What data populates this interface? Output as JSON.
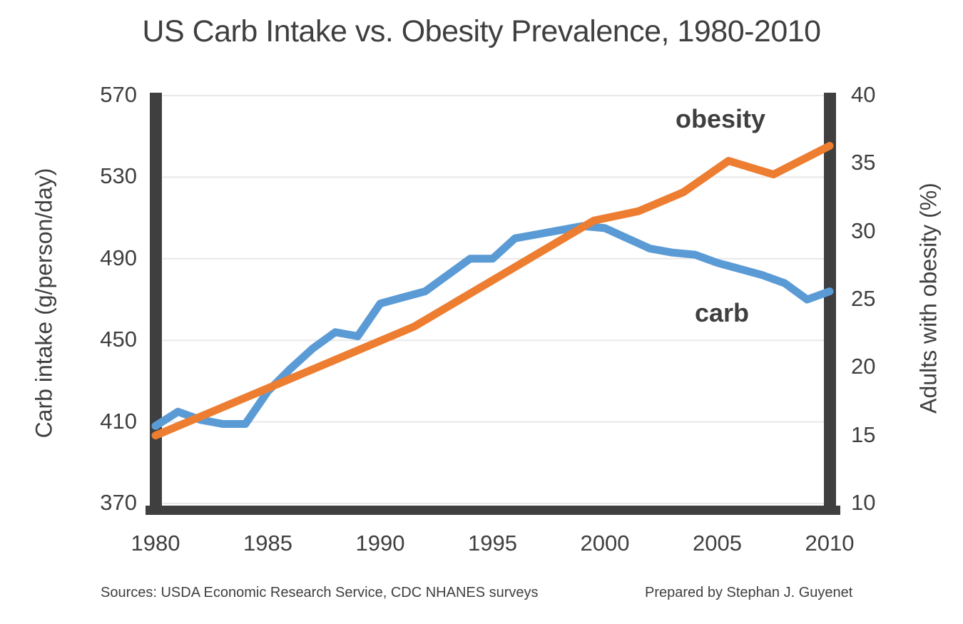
{
  "title": "US Carb Intake vs. Obesity Prevalence, 1980-2010",
  "footer": {
    "sources": "Sources: USDA Economic Research Service, CDC NHANES surveys",
    "credit": "Prepared by Stephan J. Guyenet"
  },
  "colors": {
    "carb_line": "#5B9BD5",
    "obesity_line": "#ED7D31",
    "axis_bar": "#3F3F3F",
    "gridline": "#E8E8E8",
    "text": "#3F3F3F"
  },
  "chart_data": {
    "type": "line",
    "title": "US Carb Intake vs. Obesity Prevalence, 1980-2010",
    "grid": "horizontal gridlines at left-axis ticks, light gray",
    "legend": "inline series labels inside plot area",
    "x_axis": {
      "ticks": [
        1980,
        1985,
        1990,
        1995,
        2000,
        2005,
        2010
      ],
      "range": [
        1980,
        2010
      ]
    },
    "left_axis": {
      "label": "Carb intake (g/person/day)",
      "ticks": [
        370,
        410,
        450,
        490,
        530,
        570
      ],
      "range": [
        370,
        570
      ]
    },
    "right_axis": {
      "label": "Adults with obesity (%)",
      "ticks": [
        10,
        15,
        20,
        25,
        30,
        35,
        40
      ],
      "range": [
        10,
        40
      ]
    },
    "series": [
      {
        "name": "carb",
        "inline_label": "carb",
        "axis": "left",
        "color": "#5B9BD5",
        "units": "g/person/day",
        "points": [
          [
            1980,
            408
          ],
          [
            1981,
            415
          ],
          [
            1982,
            411
          ],
          [
            1983,
            409
          ],
          [
            1984,
            409
          ],
          [
            1985,
            425
          ],
          [
            1986,
            436
          ],
          [
            1987,
            446
          ],
          [
            1988,
            454
          ],
          [
            1989,
            452
          ],
          [
            1990,
            468
          ],
          [
            1991,
            471
          ],
          [
            1992,
            474
          ],
          [
            1993,
            482
          ],
          [
            1994,
            490
          ],
          [
            1995,
            490
          ],
          [
            1996,
            500
          ],
          [
            1997,
            502
          ],
          [
            1998,
            504
          ],
          [
            1999,
            506
          ],
          [
            2000,
            505
          ],
          [
            2001,
            500
          ],
          [
            2002,
            495
          ],
          [
            2003,
            493
          ],
          [
            2004,
            492
          ],
          [
            2005,
            488
          ],
          [
            2006,
            485
          ],
          [
            2007,
            482
          ],
          [
            2008,
            478
          ],
          [
            2009,
            470
          ],
          [
            2010,
            474
          ]
        ]
      },
      {
        "name": "obesity",
        "inline_label": "obesity",
        "axis": "right",
        "color": "#ED7D31",
        "units": "% of adults",
        "points": [
          [
            1980,
            15.0
          ],
          [
            1991.5,
            23.0
          ],
          [
            1999.5,
            30.8
          ],
          [
            2001.5,
            31.5
          ],
          [
            2003.5,
            32.9
          ],
          [
            2005.5,
            35.2
          ],
          [
            2007.5,
            34.2
          ],
          [
            2010,
            36.3
          ]
        ]
      }
    ]
  }
}
